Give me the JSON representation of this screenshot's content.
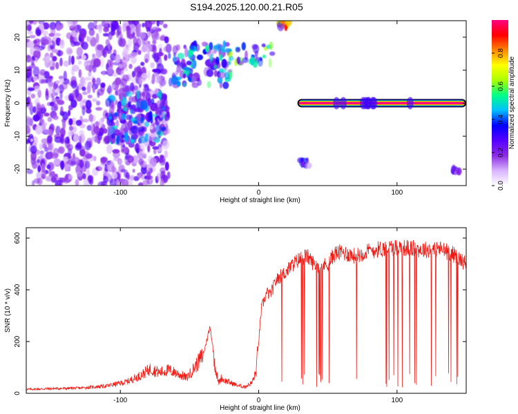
{
  "title": "S194.2025.120.00.21.R05",
  "colors": {
    "snr_line": "#f01a14",
    "frame": "#000000",
    "background": "#ffffff"
  },
  "chart_data": [
    {
      "type": "heatmap",
      "xlabel": "Height of straight line (km)",
      "ylabel": "Frequency (Hz)",
      "xlim": [
        -168,
        150
      ],
      "ylim": [
        -25,
        25
      ],
      "x_ticks": [
        -100,
        0,
        100
      ],
      "y_ticks": [
        -20,
        -10,
        0,
        10,
        20
      ],
      "colorbar": {
        "label": "Normalized spectral amplitude",
        "range": [
          0,
          1
        ],
        "ticks": [
          "0.0",
          "0.2",
          "0.4",
          "0.6",
          "0.8"
        ],
        "colormap": [
          "#ffffff",
          "#d9b3ff",
          "#8a2be2",
          "#5500ff",
          "#0000ff",
          "#00bfff",
          "#00ff88",
          "#aaff00",
          "#ffff00",
          "#ff8800",
          "#ff0000",
          "#ff0080"
        ]
      },
      "features": [
        {
          "x_range": [
            -168,
            -65
          ],
          "y_range": [
            -25,
            25
          ],
          "level": 0.25
        },
        {
          "x_range": [
            -110,
            -68
          ],
          "y_range": [
            -12,
            3
          ],
          "level": 0.45
        },
        {
          "x_range": [
            -65,
            -20
          ],
          "y_range": [
            5,
            18
          ],
          "level": 0.5
        },
        {
          "x_range": [
            -30,
            10
          ],
          "y_range": [
            12,
            18
          ],
          "level": 0.6
        },
        {
          "x_range": [
            10,
            22
          ],
          "y_range": [
            23,
            25
          ],
          "level": 0.8
        },
        {
          "x_range": [
            28,
            150
          ],
          "y_range": [
            -0.5,
            0.5
          ],
          "level": 1.0
        },
        {
          "x_range": [
            30,
            36
          ],
          "y_range": [
            -19,
            -17
          ],
          "level": 0.4
        },
        {
          "x_range": [
            140,
            145
          ],
          "y_range": [
            -21,
            -19
          ],
          "level": 0.3
        }
      ]
    },
    {
      "type": "line",
      "xlabel": "Height of straight line (km)",
      "ylabel": "SNR (10 * v/v)",
      "xlim": [
        -168,
        150
      ],
      "ylim": [
        0,
        640
      ],
      "x_ticks": [
        -100,
        0,
        100
      ],
      "y_ticks": [
        0,
        200,
        400,
        600
      ],
      "series": [
        {
          "x": [
            -168,
            -150,
            -130,
            -110,
            -95,
            -85,
            -78,
            -72,
            -65,
            -58,
            -52,
            -45,
            -40,
            -35,
            -33,
            -31,
            -29,
            -27,
            -25,
            -20,
            -15,
            -10,
            -5,
            -2,
            0,
            2,
            4,
            6,
            8,
            10,
            12,
            15,
            20,
            25,
            30,
            35,
            40,
            45,
            50,
            55,
            60,
            70,
            80,
            90,
            100,
            110,
            120,
            130,
            140,
            145,
            150
          ],
          "y": [
            15,
            18,
            20,
            28,
            45,
            70,
            95,
            80,
            90,
            75,
            60,
            110,
            150,
            260,
            170,
            90,
            40,
            60,
            50,
            40,
            30,
            25,
            40,
            80,
            200,
            330,
            360,
            390,
            380,
            400,
            430,
            450,
            470,
            500,
            520,
            530,
            500,
            490,
            500,
            540,
            545,
            530,
            550,
            560,
            565,
            560,
            555,
            560,
            540,
            520,
            500
          ]
        }
      ]
    }
  ]
}
